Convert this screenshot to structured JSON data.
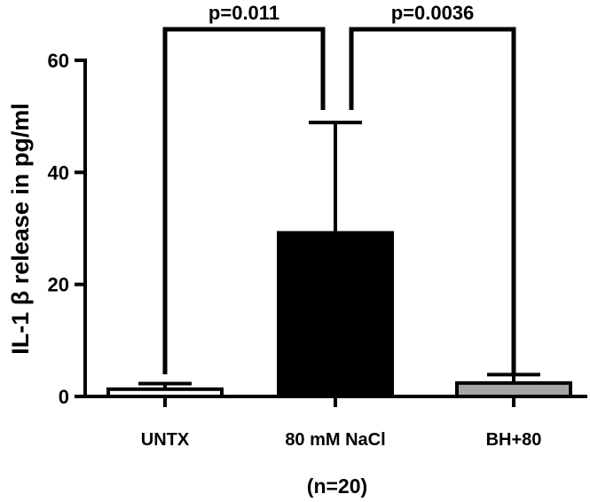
{
  "chart_data": {
    "type": "bar",
    "categories": [
      "UNTX",
      "80 mM NaCl",
      "BH+80"
    ],
    "values": [
      1.3,
      29.2,
      2.4
    ],
    "errors": [
      1.0,
      19.7,
      1.5
    ],
    "bar_colors": [
      "#ffffff",
      "#000000",
      "#a6a6a6"
    ],
    "ylabel": "IL-1 β release in pg/ml",
    "ylim": [
      0,
      60
    ],
    "yticks": [
      0,
      20,
      40,
      60
    ],
    "yticks_text": [
      "0",
      "20",
      "40",
      "60"
    ],
    "grid": false,
    "note": "(n=20)",
    "comparisons": [
      {
        "from": 0,
        "to": 1,
        "label": "p=0.011"
      },
      {
        "from": 1,
        "to": 2,
        "label": "p=0.0036"
      }
    ]
  }
}
